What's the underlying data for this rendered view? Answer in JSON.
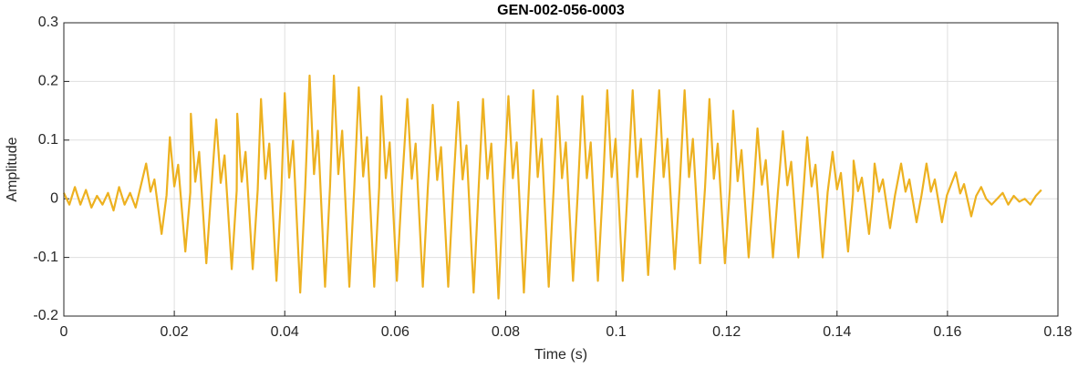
{
  "chart_data": {
    "type": "line",
    "title": "GEN-002-056-0003",
    "x_label": "Time (s)",
    "y_label": "Amplitude",
    "xlim": [
      0,
      0.18
    ],
    "ylim": [
      -0.2,
      0.3
    ],
    "xticks": [
      0,
      0.02,
      0.04,
      0.06,
      0.08,
      0.1,
      0.12,
      0.14,
      0.16,
      0.18
    ],
    "yticks": [
      -0.2,
      -0.1,
      0,
      0.1,
      0.2,
      0.3
    ],
    "grid": true,
    "series": [
      {
        "color": "#EDB120",
        "x": [
          0,
          0.001,
          0.002,
          0.003,
          0.004,
          0.005,
          0.006,
          0.007,
          0.008,
          0.009,
          0.01,
          0.011,
          0.012,
          0.013,
          0.0149,
          0.0157,
          0.0164,
          0.0177,
          0.0186,
          0.0192,
          0.02,
          0.0207,
          0.022,
          0.0229,
          0.023,
          0.0238,
          0.0245,
          0.0258,
          0.0267,
          0.0276,
          0.0284,
          0.0291,
          0.0304,
          0.0313,
          0.0314,
          0.0322,
          0.0329,
          0.0342,
          0.0351,
          0.0357,
          0.0365,
          0.0372,
          0.0385,
          0.0394,
          0.04,
          0.0408,
          0.0415,
          0.0428,
          0.0437,
          0.0445,
          0.0453,
          0.046,
          0.0473,
          0.0482,
          0.0489,
          0.0497,
          0.0504,
          0.0517,
          0.0526,
          0.0534,
          0.0542,
          0.0549,
          0.0562,
          0.0571,
          0.0575,
          0.0583,
          0.059,
          0.0603,
          0.0612,
          0.0622,
          0.063,
          0.0637,
          0.065,
          0.0659,
          0.0668,
          0.0676,
          0.0683,
          0.0696,
          0.0705,
          0.0714,
          0.0722,
          0.0729,
          0.0742,
          0.0751,
          0.0759,
          0.0767,
          0.0774,
          0.0787,
          0.0796,
          0.0805,
          0.0813,
          0.082,
          0.0833,
          0.0842,
          0.085,
          0.0858,
          0.0865,
          0.0878,
          0.0887,
          0.0894,
          0.0902,
          0.0909,
          0.0922,
          0.0931,
          0.0939,
          0.0947,
          0.0954,
          0.0967,
          0.0976,
          0.0984,
          0.0992,
          0.0999,
          0.1012,
          0.1021,
          0.103,
          0.1038,
          0.1045,
          0.1058,
          0.1067,
          0.1078,
          0.1086,
          0.1093,
          0.1106,
          0.1115,
          0.1124,
          0.1132,
          0.1139,
          0.1152,
          0.1161,
          0.1169,
          0.1177,
          0.1184,
          0.1197,
          0.1206,
          0.1212,
          0.122,
          0.1227,
          0.124,
          0.1249,
          0.1256,
          0.1264,
          0.1271,
          0.1284,
          0.1293,
          0.1302,
          0.131,
          0.1317,
          0.133,
          0.1339,
          0.1346,
          0.1354,
          0.1361,
          0.1374,
          0.1383,
          0.1392,
          0.14,
          0.1407,
          0.142,
          0.1429,
          0.143,
          0.1438,
          0.1445,
          0.1458,
          0.1465,
          0.1468,
          0.1476,
          0.1483,
          0.1496,
          0.1505,
          0.1516,
          0.1524,
          0.1531,
          0.1544,
          0.1553,
          0.1562,
          0.157,
          0.1577,
          0.159,
          0.1599,
          0.1615,
          0.1623,
          0.163,
          0.1643,
          0.1652,
          0.1661,
          0.167,
          0.168,
          0.169,
          0.17,
          0.171,
          0.172,
          0.173,
          0.174,
          0.175,
          0.176,
          0.177
        ],
        "values": [
          0.01,
          -0.01,
          0.02,
          -0.01,
          0.015,
          -0.015,
          0.005,
          -0.01,
          0.01,
          -0.02,
          0.02,
          -0.01,
          0.01,
          -0.015,
          0.06,
          0.012,
          0.033,
          -0.06,
          0.006,
          0.105,
          0.021,
          0.058,
          -0.09,
          0.011,
          0.145,
          0.029,
          0.08,
          -0.11,
          0.015,
          0.135,
          0.027,
          0.074,
          -0.12,
          0.014,
          0.145,
          0.029,
          0.08,
          -0.12,
          0.015,
          0.17,
          0.034,
          0.094,
          -0.14,
          0.017,
          0.18,
          0.036,
          0.099,
          -0.16,
          0.018,
          0.21,
          0.042,
          0.116,
          -0.15,
          0.021,
          0.21,
          0.042,
          0.116,
          -0.15,
          0.021,
          0.19,
          0.038,
          0.105,
          -0.15,
          0.019,
          0.175,
          0.035,
          0.096,
          -0.14,
          0.018,
          0.17,
          0.034,
          0.094,
          -0.15,
          0.017,
          0.16,
          0.032,
          0.088,
          -0.15,
          0.016,
          0.165,
          0.033,
          0.091,
          -0.16,
          0.017,
          0.17,
          0.034,
          0.094,
          -0.17,
          0.017,
          0.175,
          0.035,
          0.096,
          -0.16,
          0.018,
          0.185,
          0.037,
          0.102,
          -0.15,
          0.019,
          0.175,
          0.035,
          0.096,
          -0.14,
          0.018,
          0.175,
          0.035,
          0.096,
          -0.14,
          0.018,
          0.185,
          0.037,
          0.102,
          -0.14,
          0.019,
          0.185,
          0.037,
          0.102,
          -0.13,
          0.019,
          0.185,
          0.037,
          0.102,
          -0.12,
          0.019,
          0.185,
          0.037,
          0.102,
          -0.11,
          0.019,
          0.17,
          0.034,
          0.094,
          -0.11,
          0.017,
          0.15,
          0.03,
          0.083,
          -0.1,
          0.015,
          0.12,
          0.024,
          0.066,
          -0.1,
          0.012,
          0.115,
          0.023,
          0.063,
          -0.1,
          0.012,
          0.105,
          0.021,
          0.058,
          -0.1,
          0.011,
          0.08,
          0.016,
          0.044,
          -0.09,
          0.008,
          0.065,
          0.013,
          0.036,
          -0.06,
          0.007,
          0.06,
          0.012,
          0.033,
          -0.05,
          0.006,
          0.06,
          0.012,
          0.033,
          -0.04,
          0.006,
          0.06,
          0.012,
          0.033,
          -0.04,
          0.006,
          0.045,
          0.009,
          0.025,
          -0.03,
          0.005,
          0.02,
          0.0,
          -0.01,
          0.0,
          0.01,
          -0.01,
          0.005,
          -0.005,
          0.0,
          -0.01,
          0.005,
          0.015
        ]
      }
    ]
  }
}
